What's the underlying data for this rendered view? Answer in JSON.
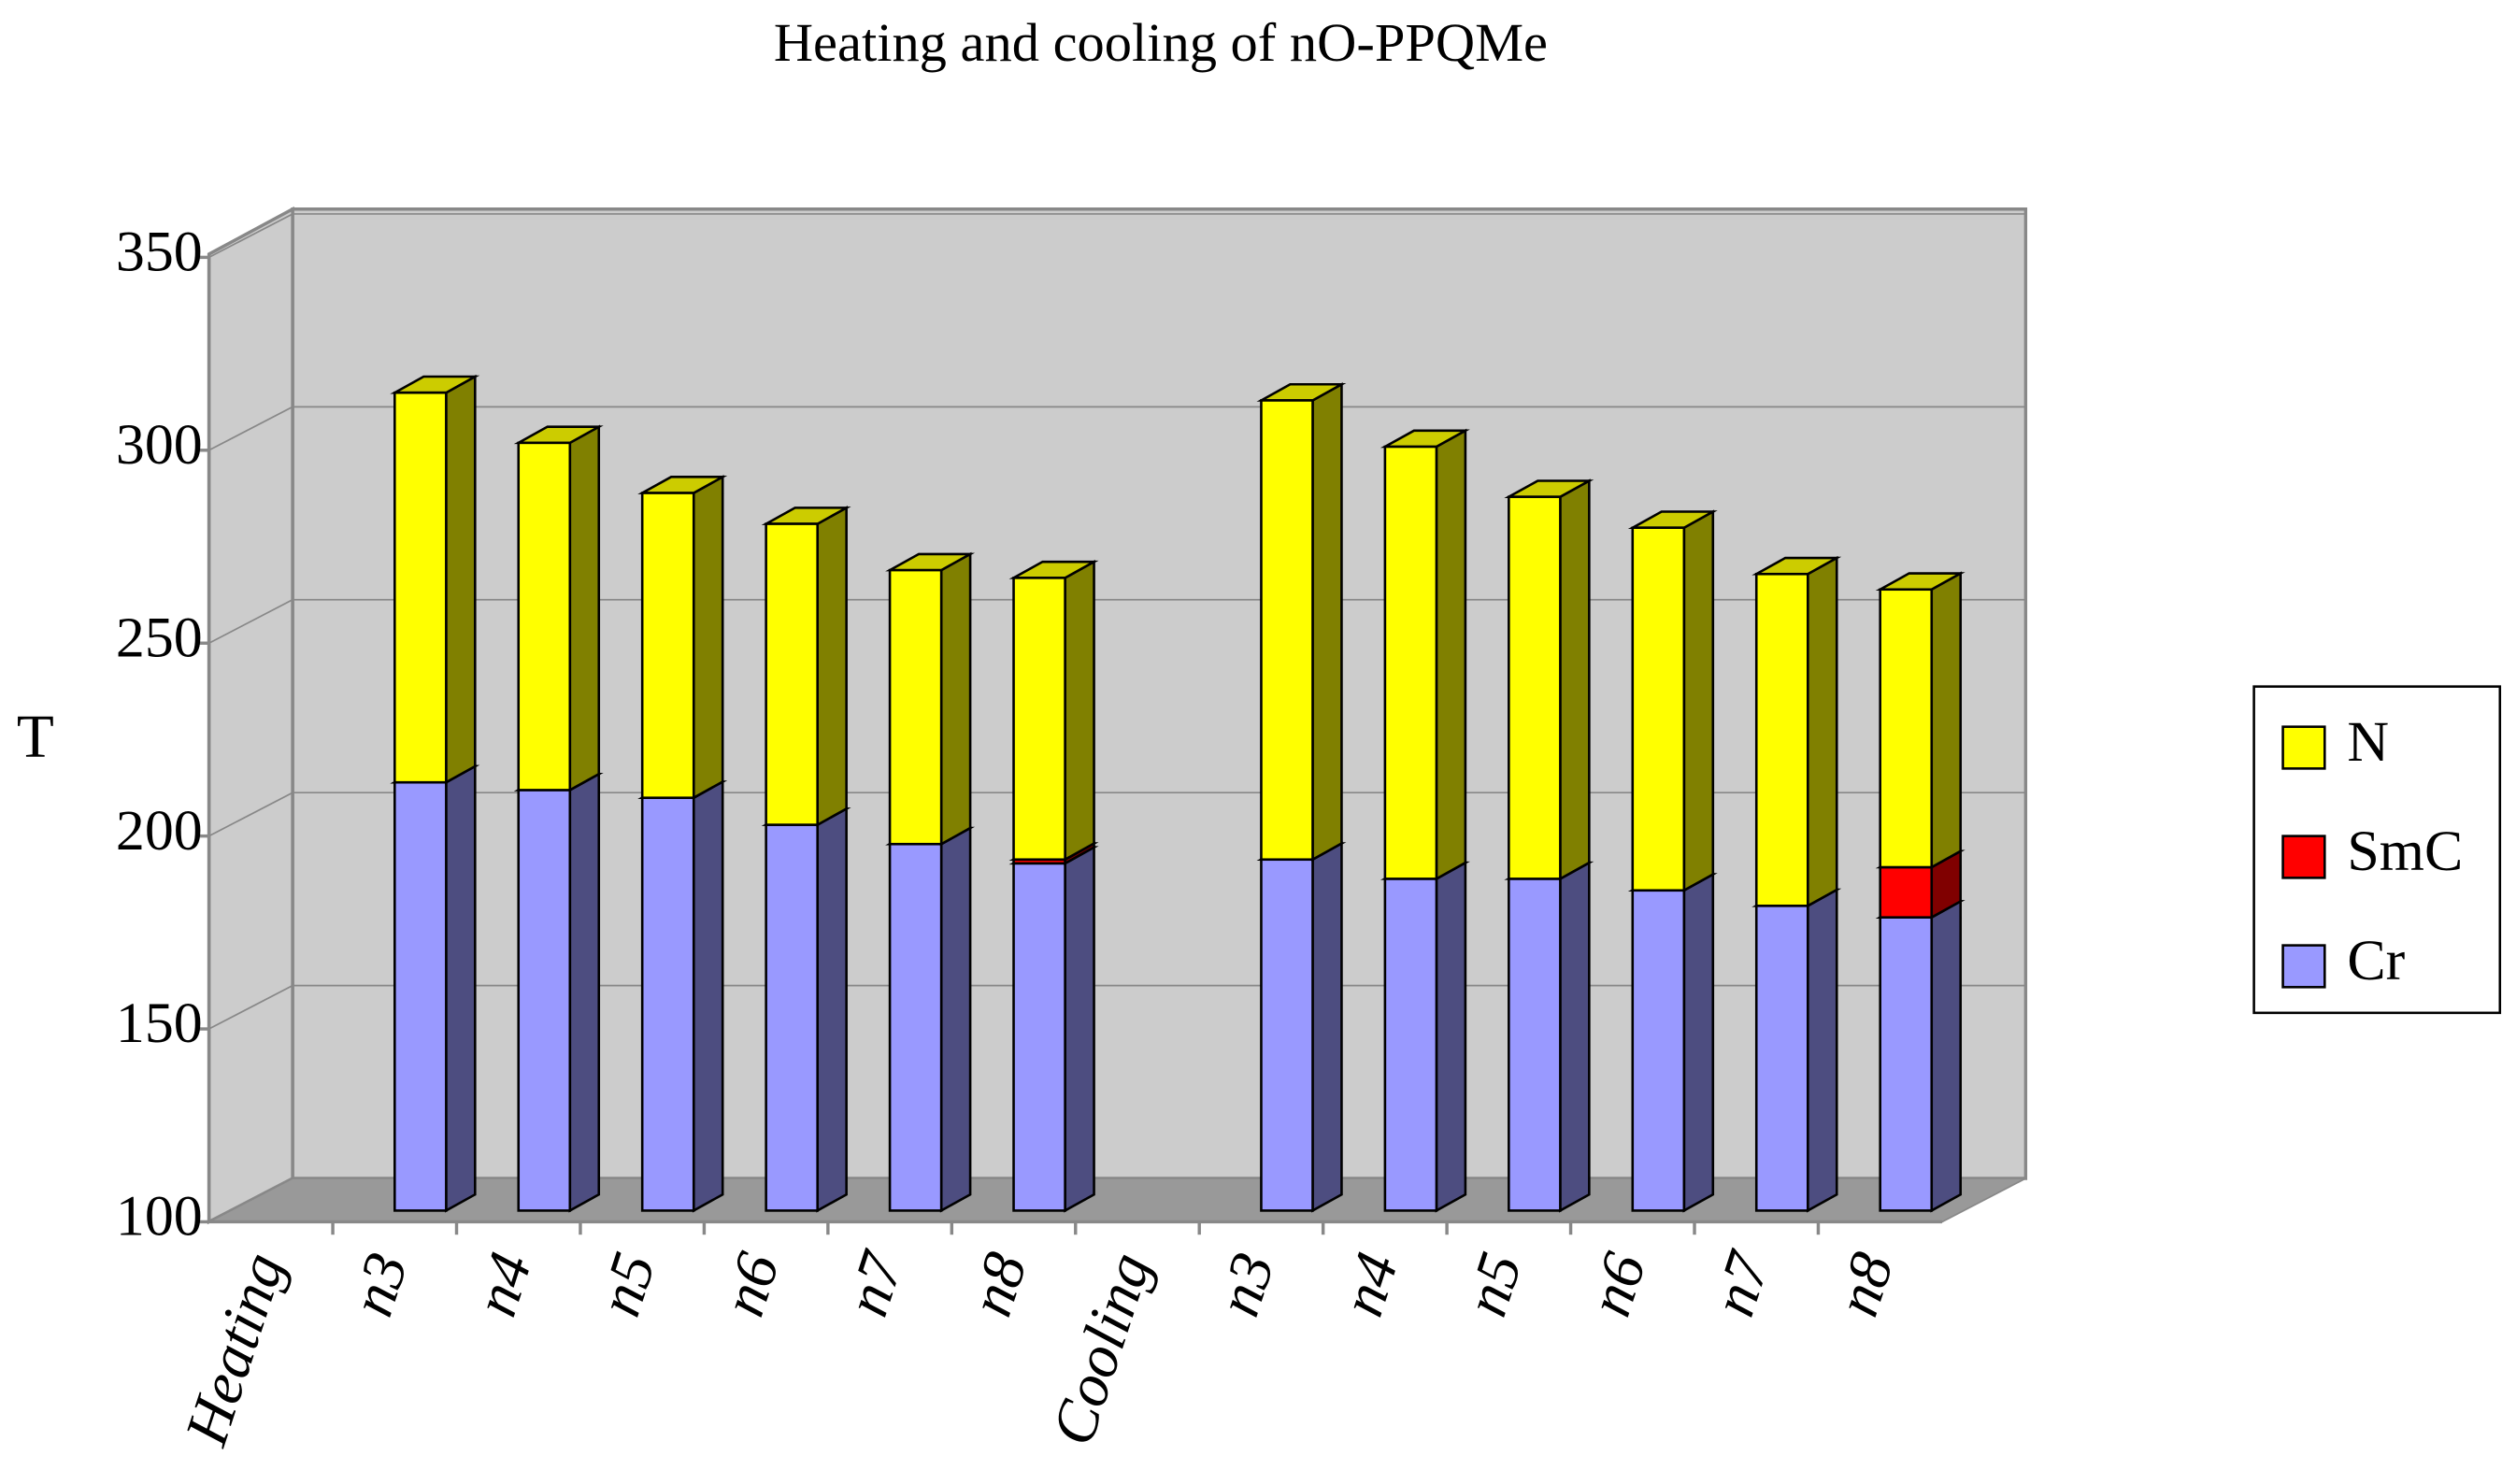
{
  "chart_data": {
    "type": "bar3d_stacked",
    "title": "Heating and cooling of nO-PPQMe",
    "y_label": "T",
    "categories": [
      "Heating",
      "n3",
      "n4",
      "n5",
      "n6",
      "n7",
      "n8",
      "Cooling",
      "n3",
      "n4",
      "n5",
      "n6",
      "n7",
      "n8"
    ],
    "series": [
      {
        "name": "Cr",
        "color": "#9999ff",
        "side": "#4d4d80",
        "values": [
          null,
          211,
          209,
          207,
          200,
          195,
          190,
          null,
          191,
          186,
          186,
          183,
          179,
          176
        ]
      },
      {
        "name": "SmC",
        "color": "#ff0000",
        "side": "#800000",
        "values": [
          null,
          null,
          null,
          null,
          null,
          null,
          1,
          null,
          null,
          null,
          null,
          null,
          null,
          13
        ]
      },
      {
        "name": "N",
        "color": "#ffff00",
        "side": "#808000",
        "values": [
          null,
          101,
          90,
          79,
          78,
          71,
          73,
          null,
          119,
          112,
          99,
          94,
          86,
          72
        ]
      }
    ],
    "ylim": [
      100,
      350
    ],
    "yticks": [
      100,
      150,
      200,
      250,
      300,
      350
    ],
    "grid": true,
    "legend": "right"
  }
}
